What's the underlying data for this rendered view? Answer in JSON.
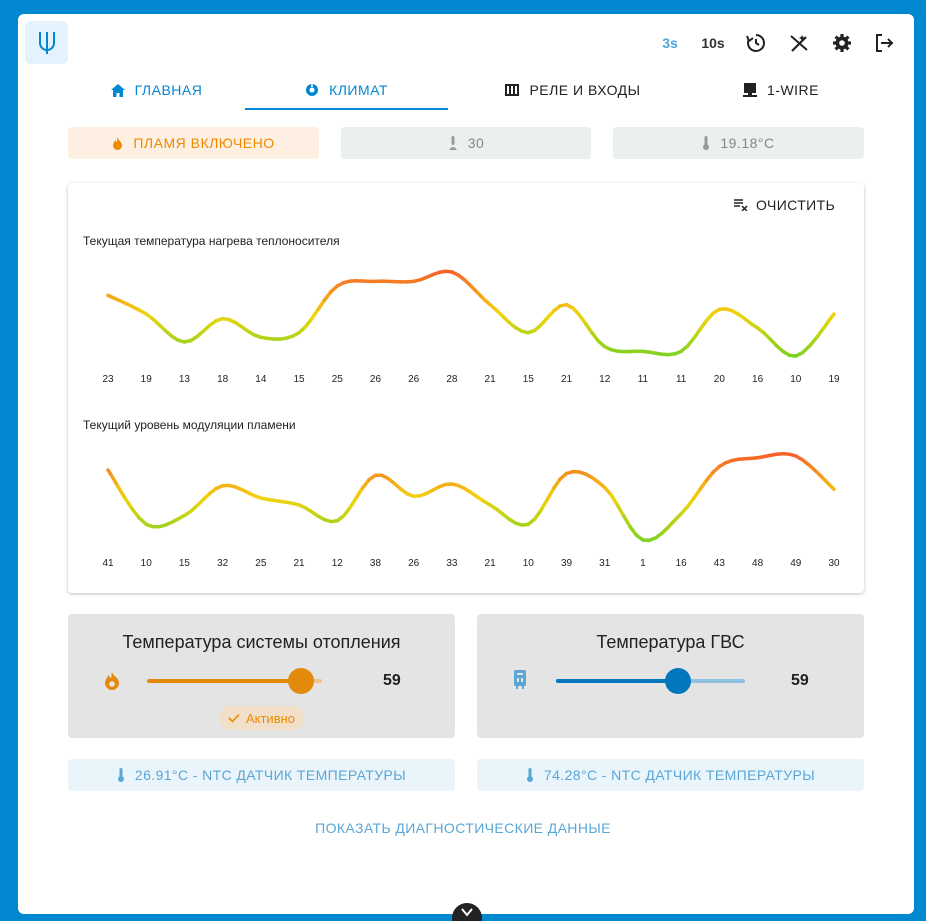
{
  "header": {
    "interval_3s": "3s",
    "interval_10s": "10s"
  },
  "tabs": [
    {
      "label": "ГЛАВНАЯ",
      "icon": "home-icon"
    },
    {
      "label": "КЛИМАТ",
      "icon": "thermostat-icon"
    },
    {
      "label": "РЕЛЕ И ВХОДЫ",
      "icon": "relay-icon"
    },
    {
      "label": "1-WIRE",
      "icon": "ethernet-icon"
    }
  ],
  "status": {
    "flame": "ПЛАМЯ ВКЛЮЧЕНО",
    "modulation": "30",
    "temperature": "19.18°C"
  },
  "charts_card": {
    "clear_label": "ОЧИСТИТЬ"
  },
  "chart_data": [
    {
      "type": "line",
      "title": "Текущая температура нагрева теплоносителя",
      "categories": [
        "23",
        "19",
        "13",
        "18",
        "14",
        "15",
        "25",
        "26",
        "26",
        "28",
        "21",
        "15",
        "21",
        "12",
        "11",
        "11",
        "20",
        "16",
        "10",
        "19"
      ],
      "values": [
        23,
        19,
        13,
        18,
        14,
        15,
        25,
        26,
        26,
        28,
        21,
        15,
        21,
        12,
        11,
        11,
        20,
        16,
        10,
        19
      ]
    },
    {
      "type": "line",
      "title": "Текущий уровень модуляции пламени",
      "categories": [
        "41",
        "10",
        "15",
        "32",
        "25",
        "21",
        "12",
        "38",
        "26",
        "33",
        "21",
        "10",
        "39",
        "31",
        "1",
        "16",
        "43",
        "48",
        "49",
        "30"
      ],
      "values": [
        41,
        10,
        15,
        32,
        25,
        21,
        12,
        38,
        26,
        33,
        21,
        10,
        39,
        31,
        1,
        16,
        43,
        48,
        49,
        30
      ]
    }
  ],
  "heating": {
    "title": "Температура системы отопления",
    "value": "59",
    "level": 59,
    "min": 0,
    "max": 67,
    "active_label": "Активно",
    "accent": "#e38a0d"
  },
  "dhw": {
    "title": "Температура ГВС",
    "value": "59",
    "level": 59,
    "min": 30,
    "max": 75,
    "accent": "#0277bd"
  },
  "sensors": [
    {
      "label": "26.91°C - NTC ДАТЧИК ТЕМПЕРАТУРЫ"
    },
    {
      "label": "74.28°C - NTC ДАТЧИК ТЕМПЕРАТУРЫ"
    }
  ],
  "diagnostics_label": "ПОКАЗАТЬ ДИАГНОСТИЧЕСКИЕ ДАННЫЕ",
  "colors": {
    "primary": "#0288d1",
    "flame": "#ef8a00",
    "chart_low": "#7ed321",
    "chart_mid": "#f2d40e",
    "chart_high": "#f5642a"
  }
}
